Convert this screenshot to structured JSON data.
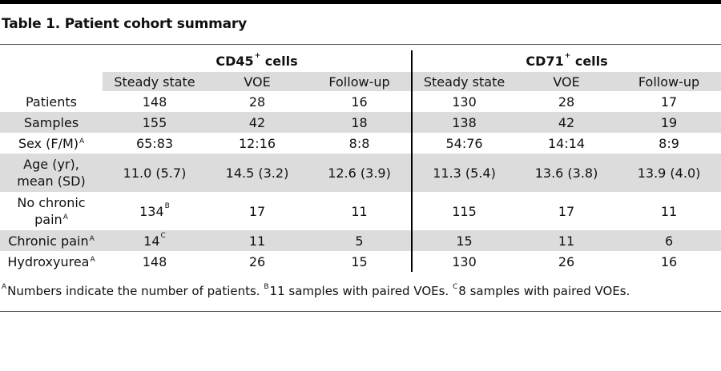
{
  "title": "Table 1. Patient cohort summary",
  "groups": [
    {
      "name": "CD45",
      "sup": "+",
      "suffix": " cells"
    },
    {
      "name": "CD71",
      "sup": "+",
      "suffix": " cells"
    }
  ],
  "columns": [
    "Steady state",
    "VOE",
    "Follow-up",
    "Steady state",
    "VOE",
    "Follow-up"
  ],
  "rows": [
    {
      "label": "Patients",
      "label_sup": "",
      "cells": [
        "148",
        "28",
        "16",
        "130",
        "28",
        "17"
      ],
      "cell_sups": [
        "",
        "",
        "",
        "",
        "",
        ""
      ]
    },
    {
      "label": "Samples",
      "label_sup": "",
      "cells": [
        "155",
        "42",
        "18",
        "138",
        "42",
        "19"
      ],
      "cell_sups": [
        "",
        "",
        "",
        "",
        "",
        ""
      ]
    },
    {
      "label": "Sex (F/M)",
      "label_sup": "A",
      "cells": [
        "65:83",
        "12:16",
        "8:8",
        "54:76",
        "14:14",
        "8:9"
      ],
      "cell_sups": [
        "",
        "",
        "",
        "",
        "",
        ""
      ]
    },
    {
      "label_line1": "Age (yr),",
      "label_line2": "mean (SD)",
      "label_sup": "",
      "cells": [
        "11.0 (5.7)",
        "14.5 (3.2)",
        "12.6 (3.9)",
        "11.3 (5.4)",
        "13.6 (3.8)",
        "13.9 (4.0)"
      ],
      "cell_sups": [
        "",
        "",
        "",
        "",
        "",
        ""
      ]
    },
    {
      "label_line1": "No chronic",
      "label_line2": "pain",
      "label_sup": "A",
      "cells": [
        "134",
        "17",
        "11",
        "115",
        "17",
        "11"
      ],
      "cell_sups": [
        "B",
        "",
        "",
        "",
        "",
        ""
      ]
    },
    {
      "label": "Chronic pain",
      "label_sup": "A",
      "cells": [
        "14",
        "11",
        "5",
        "15",
        "11",
        "6"
      ],
      "cell_sups": [
        "C",
        "",
        "",
        "",
        "",
        ""
      ]
    },
    {
      "label": "Hydroxyurea",
      "label_sup": "A",
      "cells": [
        "148",
        "26",
        "15",
        "130",
        "26",
        "16"
      ],
      "cell_sups": [
        "",
        "",
        "",
        "",
        "",
        ""
      ]
    }
  ],
  "footnote": [
    {
      "sup": "A",
      "text": "Numbers indicate the number of patients. "
    },
    {
      "sup": "B",
      "text": "11 samples with paired VOEs. "
    },
    {
      "sup": "C",
      "text": "8 samples with paired VOEs."
    }
  ]
}
